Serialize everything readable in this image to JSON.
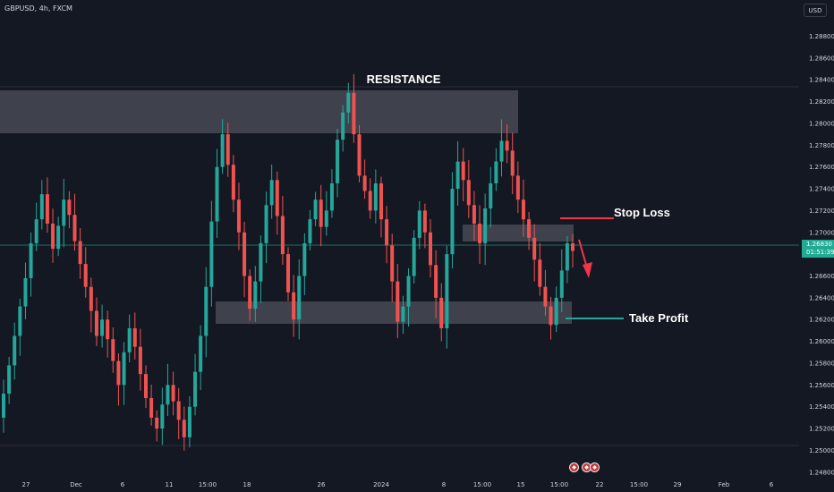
{
  "header": {
    "symbol": "GBPUSD, 4h, FXCM",
    "currency": "USD"
  },
  "last_price": {
    "value": "1.26830",
    "countdown": "01:51:39"
  },
  "colors": {
    "background": "#141823",
    "candle_up": "#26a69a",
    "candle_down": "#ef5350",
    "zone": "#464a55",
    "stop_loss": "#f23645",
    "take_profit": "#26a69a",
    "arrow": "#f23645",
    "price_badge": "#22ab94"
  },
  "annotations": {
    "resistance": "RESISTANCE",
    "stop_loss": "Stop Loss",
    "take_profit": "Take Profit"
  },
  "icons": [
    "flag-icon-uk",
    "flag-icon-us",
    "flag-icon-us"
  ],
  "chart_data": {
    "type": "candlestick",
    "title": "GBPUSD, 4h, FXCM",
    "xlabel": "",
    "ylabel": "",
    "ylim": [
      1.247,
      1.2905
    ],
    "y_ticks": [
      "1.28800",
      "1.28600",
      "1.28400",
      "1.28200",
      "1.28000",
      "1.27800",
      "1.27600",
      "1.27400",
      "1.27200",
      "1.27000",
      "1.26600",
      "1.26400",
      "1.26200",
      "1.26000",
      "1.25800",
      "1.25600",
      "1.25400",
      "1.25200",
      "1.25000",
      "1.24800"
    ],
    "x_ticks": [
      "27",
      "Dec",
      "6",
      "11",
      "15:00",
      "18",
      "26",
      "2024",
      "8",
      "15:00",
      "15",
      "15:00",
      "22",
      "15:00",
      "29",
      "Feb",
      "6"
    ],
    "close_series": [
      1.2552,
      1.2578,
      1.2605,
      1.2632,
      1.2658,
      1.269,
      1.2712,
      1.2735,
      1.2708,
      1.2685,
      1.2706,
      1.273,
      1.2716,
      1.2692,
      1.2671,
      1.265,
      1.2628,
      1.2605,
      1.262,
      1.2602,
      1.2582,
      1.256,
      1.259,
      1.2612,
      1.2595,
      1.257,
      1.2548,
      1.253,
      1.252,
      1.2542,
      1.256,
      1.2545,
      1.2528,
      1.2512,
      1.254,
      1.2572,
      1.2605,
      1.265,
      1.271,
      1.276,
      1.279,
      1.2762,
      1.273,
      1.27,
      1.266,
      1.263,
      1.2655,
      1.269,
      1.2725,
      1.2748,
      1.2715,
      1.268,
      1.2645,
      1.262,
      1.266,
      1.269,
      1.2712,
      1.273,
      1.2705,
      1.272,
      1.2745,
      1.2785,
      1.281,
      1.2828,
      1.279,
      1.2752,
      1.2738,
      1.272,
      1.2745,
      1.2712,
      1.2688,
      1.2655,
      1.2618,
      1.2632,
      1.266,
      1.2695,
      1.272,
      1.27,
      1.267,
      1.264,
      1.2612,
      1.268,
      1.274,
      1.2765,
      1.2748,
      1.2725,
      1.2708,
      1.269,
      1.2722,
      1.2745,
      1.2765,
      1.2784,
      1.2775,
      1.2752,
      1.273,
      1.2712,
      1.2695,
      1.2675,
      1.265,
      1.2632,
      1.2615,
      1.264,
      1.2665,
      1.269,
      1.2683
    ],
    "price_labels": {
      "high": 1.2828,
      "low": 1.2502
    },
    "zones": [
      {
        "name": "resistance",
        "low": 1.2785,
        "high": 1.2825
      },
      {
        "name": "support",
        "low": 1.261,
        "high": 1.2632
      },
      {
        "name": "entry",
        "low": 1.2686,
        "high": 1.2702
      }
    ],
    "levels": {
      "stop_loss": 1.2708,
      "take_profit": 1.2616,
      "current": 1.2683
    }
  }
}
